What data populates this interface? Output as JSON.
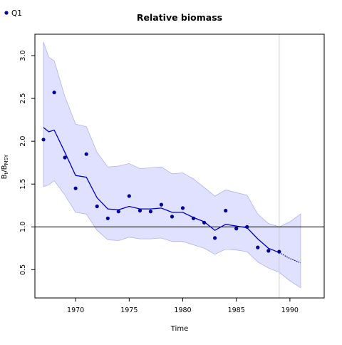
{
  "chart_data": {
    "type": "line",
    "title": "Relative biomass",
    "xlabel": "Time",
    "ylabel": "B",
    "ylabel_subscript": "t",
    "ylabel_sep": "/B",
    "ylabel_subscript2": "MSY",
    "xlim": [
      1966.2,
      1993.2
    ],
    "ylim": [
      0.17,
      3.25
    ],
    "x_ticks": [
      1970,
      1975,
      1980,
      1985,
      1990
    ],
    "y_ticks": [
      0.5,
      1.0,
      1.5,
      2.0,
      2.5,
      3.0
    ],
    "x_tick_labels": [
      "1970",
      "1975",
      "1980",
      "1985",
      "1990"
    ],
    "y_tick_labels": [
      "0.5",
      "1.0",
      "1.5",
      "2.0",
      "2.5",
      "3.0"
    ],
    "reference_line_y": 1.0,
    "vertical_line_x": 1989,
    "legend": {
      "position": "top-left",
      "entries": [
        "Q1"
      ]
    },
    "colors": {
      "estimate": "#0000cc",
      "points": "#000099",
      "ci_fill": "#e0e0ff",
      "ci_stroke": "#b3b3f2",
      "reference": "#000000",
      "vline": "#cccccc"
    },
    "series": [
      {
        "name": "Q1",
        "kind": "points",
        "x": [
          1967,
          1968,
          1969,
          1970,
          1971,
          1972,
          1973,
          1974,
          1975,
          1976,
          1977,
          1978,
          1979,
          1980,
          1981,
          1982,
          1983,
          1984,
          1985,
          1986,
          1987,
          1988,
          1989
        ],
        "y": [
          2.02,
          2.57,
          1.81,
          1.45,
          1.85,
          1.24,
          1.1,
          1.18,
          1.36,
          1.19,
          1.18,
          1.26,
          1.12,
          1.22,
          1.1,
          1.05,
          0.87,
          1.19,
          0.98,
          1.0,
          0.76,
          0.72,
          0.71
        ]
      },
      {
        "kind": "estimate",
        "x": [
          1967,
          1967.5,
          1968,
          1969,
          1970,
          1971,
          1972,
          1973,
          1974,
          1975,
          1976,
          1977,
          1978,
          1979,
          1980,
          1981,
          1982,
          1983,
          1984,
          1985,
          1986,
          1987,
          1988,
          1989
        ],
        "y": [
          2.16,
          2.11,
          2.13,
          1.87,
          1.6,
          1.58,
          1.34,
          1.21,
          1.2,
          1.24,
          1.21,
          1.21,
          1.22,
          1.17,
          1.17,
          1.11,
          1.06,
          0.96,
          1.03,
          1.01,
          0.99,
          0.86,
          0.75,
          0.7
        ]
      },
      {
        "kind": "forecast",
        "x": [
          1989,
          1990,
          1991
        ],
        "y": [
          0.7,
          0.63,
          0.58
        ]
      },
      {
        "kind": "ci_upper",
        "x": [
          1967,
          1967.5,
          1968,
          1969,
          1970,
          1971,
          1972,
          1973,
          1974,
          1975,
          1976,
          1977,
          1978,
          1979,
          1980,
          1981,
          1982,
          1983,
          1984,
          1985,
          1986,
          1987,
          1988,
          1989,
          1990,
          1991
        ],
        "y": [
          3.16,
          2.98,
          2.94,
          2.52,
          2.2,
          2.17,
          1.87,
          1.7,
          1.71,
          1.74,
          1.68,
          1.69,
          1.7,
          1.62,
          1.63,
          1.56,
          1.46,
          1.36,
          1.43,
          1.4,
          1.37,
          1.15,
          1.04,
          1.0,
          1.06,
          1.15
        ]
      },
      {
        "kind": "ci_lower",
        "x": [
          1967,
          1967.5,
          1968,
          1969,
          1970,
          1971,
          1972,
          1973,
          1974,
          1975,
          1976,
          1977,
          1978,
          1979,
          1980,
          1981,
          1982,
          1983,
          1984,
          1985,
          1986,
          1987,
          1988,
          1989,
          1990,
          1991
        ],
        "y": [
          1.47,
          1.49,
          1.54,
          1.37,
          1.17,
          1.15,
          0.96,
          0.85,
          0.84,
          0.88,
          0.86,
          0.86,
          0.87,
          0.83,
          0.83,
          0.79,
          0.75,
          0.68,
          0.74,
          0.73,
          0.71,
          0.59,
          0.52,
          0.47,
          0.37,
          0.29
        ]
      }
    ]
  }
}
